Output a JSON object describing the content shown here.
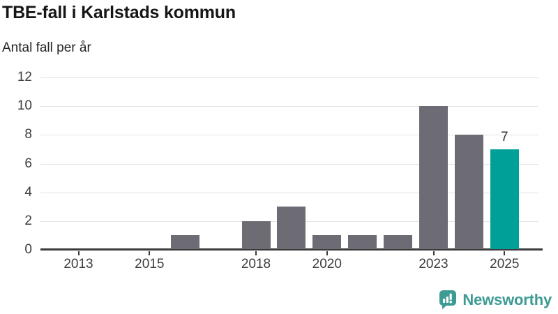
{
  "chart_data": {
    "type": "bar",
    "title": "TBE-fall i Karlstads kommun",
    "subtitle": "Antal fall per år",
    "categories": [
      2012,
      2013,
      2014,
      2015,
      2016,
      2017,
      2018,
      2019,
      2020,
      2021,
      2022,
      2023,
      2024,
      2025
    ],
    "values": [
      0,
      0,
      0,
      0,
      1,
      0,
      2,
      3,
      1,
      1,
      1,
      10,
      8,
      7
    ],
    "xticks": [
      2013,
      2015,
      2018,
      2020,
      2023,
      2025
    ],
    "yticks": [
      0,
      2,
      4,
      6,
      8,
      10,
      12
    ],
    "ylim": [
      0,
      12
    ],
    "xlabel": "",
    "ylabel": "",
    "grid": "horizontal",
    "legend": "none",
    "bar_color": "#6d6c74",
    "highlight_color": "#00a099",
    "highlight_index": 13,
    "data_label": {
      "index": 13,
      "text": "7"
    }
  },
  "colors": {
    "axis": "#3a3a3a",
    "gridline": "#e3e3e3",
    "tick_text": "#3d3d3d",
    "title_text": "#161616",
    "logo_teal": "#3e9b94"
  },
  "logo": {
    "text": "Newsworthy",
    "icon": "newsworthy-speech-bubble-chart-icon"
  }
}
